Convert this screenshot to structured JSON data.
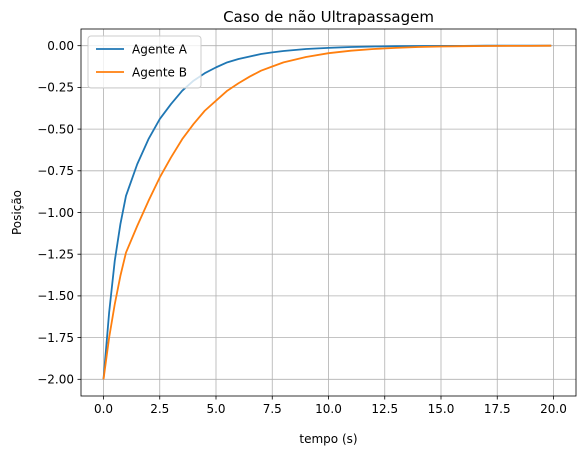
{
  "chart_data": {
    "type": "line",
    "title": "Caso de não Ultrapassagem",
    "xlabel": "tempo (s)",
    "ylabel": "Posição",
    "xlim": [
      -1.0,
      21.0
    ],
    "ylim": [
      -2.1,
      0.1
    ],
    "grid": true,
    "legend_position": "top-left",
    "xticks": [
      0.0,
      2.5,
      5.0,
      7.5,
      10.0,
      12.5,
      15.0,
      17.5,
      20.0
    ],
    "xtick_labels": [
      "0.0",
      "2.5",
      "5.0",
      "7.5",
      "10.0",
      "12.5",
      "15.0",
      "17.5",
      "20.0"
    ],
    "yticks": [
      0.0,
      -0.25,
      -0.5,
      -0.75,
      -1.0,
      -1.25,
      -1.5,
      -1.75,
      -2.0
    ],
    "ytick_labels": [
      "0.00",
      "−0.25",
      "−0.50",
      "−0.75",
      "−1.00",
      "−1.25",
      "−1.50",
      "−1.75",
      "−2.00"
    ],
    "series": [
      {
        "name": "Agente A",
        "color": "#1f77b4",
        "x": [
          0.0,
          0.25,
          0.5,
          0.75,
          1.0,
          1.5,
          2.0,
          2.5,
          3.0,
          3.5,
          4.0,
          4.5,
          5.0,
          5.5,
          6.0,
          6.5,
          7.0,
          7.5,
          8.0,
          9.0,
          10.0,
          11.0,
          12.0,
          13.0,
          14.0,
          15.0,
          16.0,
          17.0,
          18.0,
          19.0,
          19.9
        ],
        "values": [
          -2.0,
          -1.6,
          -1.29,
          -1.07,
          -0.9,
          -0.71,
          -0.56,
          -0.44,
          -0.35,
          -0.27,
          -0.21,
          -0.165,
          -0.13,
          -0.1,
          -0.08,
          -0.065,
          -0.05,
          -0.04,
          -0.032,
          -0.02,
          -0.013,
          -0.008,
          -0.005,
          -0.003,
          -0.002,
          -0.001,
          -0.001,
          0.0,
          0.0,
          0.0,
          0.0
        ]
      },
      {
        "name": "Agente B",
        "color": "#ff7f0e",
        "x": [
          0.0,
          0.25,
          0.5,
          0.75,
          1.0,
          1.5,
          2.0,
          2.5,
          3.0,
          3.5,
          4.0,
          4.5,
          5.0,
          5.5,
          6.0,
          6.5,
          7.0,
          7.5,
          8.0,
          9.0,
          10.0,
          11.0,
          12.0,
          13.0,
          14.0,
          15.0,
          16.0,
          17.0,
          18.0,
          19.0,
          19.9
        ],
        "values": [
          -2.0,
          -1.75,
          -1.55,
          -1.38,
          -1.24,
          -1.08,
          -0.93,
          -0.79,
          -0.67,
          -0.56,
          -0.47,
          -0.39,
          -0.33,
          -0.27,
          -0.225,
          -0.185,
          -0.15,
          -0.125,
          -0.1,
          -0.068,
          -0.045,
          -0.03,
          -0.02,
          -0.013,
          -0.008,
          -0.005,
          -0.003,
          -0.002,
          -0.001,
          -0.001,
          0.0
        ]
      }
    ]
  }
}
